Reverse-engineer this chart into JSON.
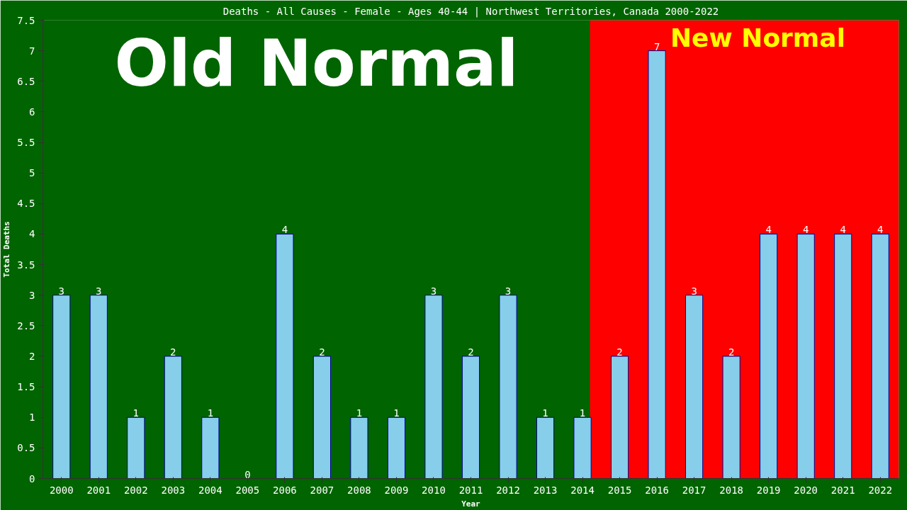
{
  "chart_data": {
    "type": "bar",
    "title": "Deaths - All Causes - Female - Ages 40-44 | Northwest Territories, Canada 2000-2022",
    "xlabel": "Year",
    "ylabel": "Total Deaths",
    "x": [
      2000,
      2001,
      2002,
      2003,
      2004,
      2005,
      2006,
      2007,
      2008,
      2009,
      2010,
      2011,
      2012,
      2013,
      2014,
      2015,
      2016,
      2017,
      2018,
      2019,
      2020,
      2021,
      2022
    ],
    "values": [
      3,
      3,
      1,
      2,
      1,
      0,
      4,
      2,
      1,
      1,
      3,
      2,
      3,
      1,
      1,
      2,
      7,
      3,
      2,
      4,
      4,
      4,
      4
    ],
    "color": "#87ceeb",
    "xlim": [
      1999.5,
      2022.5
    ],
    "xticks": [
      2000,
      2001,
      2002,
      2003,
      2004,
      2005,
      2006,
      2007,
      2008,
      2009,
      2010,
      2011,
      2012,
      2013,
      2014,
      2015,
      2016,
      2017,
      2018,
      2019,
      2020,
      2021,
      2022
    ],
    "ylim": [
      0,
      7.5
    ],
    "yticks": [
      0,
      0.5,
      1,
      1.5,
      2,
      2.5,
      3,
      3.5,
      4,
      4.5,
      5,
      5.5,
      6,
      6.5,
      7,
      7.5
    ],
    "bands": [
      {
        "axis": "x",
        "from": 1999.5,
        "to": 2014.2,
        "label": "Old Normal",
        "color": "#006400"
      },
      {
        "axis": "x",
        "from": 2014.2,
        "to": 2022.5,
        "label": "New Normal",
        "color": "#ff0000"
      }
    ],
    "data_labels": true,
    "grid": false
  }
}
